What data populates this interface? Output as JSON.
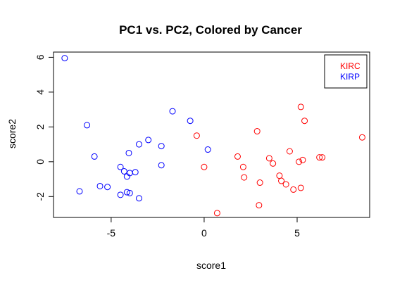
{
  "chart_data": {
    "type": "scatter",
    "title": "PC1 vs. PC2, Colored by Cancer",
    "xlabel": "score1",
    "ylabel": "score2",
    "xlim": [
      -8.1,
      8.9
    ],
    "ylim": [
      -3.2,
      6.3
    ],
    "xticks": [
      -5,
      0,
      5
    ],
    "yticks": [
      -2,
      0,
      2,
      4,
      6
    ],
    "xtick_labels": [
      "-5",
      "0",
      "5"
    ],
    "ytick_labels": [
      "-2",
      "0",
      "2",
      "4",
      "6"
    ],
    "grid": false,
    "legend_position": "top-right",
    "series": [
      {
        "name": "KIRC",
        "color": "#ff0000",
        "marker": "open-circle",
        "points": [
          [
            -0.4,
            1.5
          ],
          [
            0.0,
            -0.3
          ],
          [
            0.7,
            -2.95
          ],
          [
            1.8,
            0.3
          ],
          [
            2.1,
            -0.3
          ],
          [
            2.15,
            -0.9
          ],
          [
            2.85,
            1.75
          ],
          [
            2.95,
            -2.5
          ],
          [
            3.0,
            -1.2
          ],
          [
            3.5,
            0.2
          ],
          [
            3.7,
            -0.1
          ],
          [
            4.05,
            -0.8
          ],
          [
            4.15,
            -1.1
          ],
          [
            4.4,
            -1.3
          ],
          [
            4.6,
            0.6
          ],
          [
            4.8,
            -1.6
          ],
          [
            5.1,
            0.0
          ],
          [
            5.2,
            -1.5
          ],
          [
            5.2,
            3.15
          ],
          [
            5.3,
            0.1
          ],
          [
            5.4,
            2.35
          ],
          [
            6.2,
            0.25
          ],
          [
            6.35,
            0.25
          ],
          [
            8.5,
            1.4
          ]
        ]
      },
      {
        "name": "KIRP",
        "color": "#0000ff",
        "marker": "open-circle",
        "points": [
          [
            -7.5,
            5.95
          ],
          [
            -6.7,
            -1.7
          ],
          [
            -6.3,
            2.1
          ],
          [
            -5.9,
            0.3
          ],
          [
            -5.6,
            -1.4
          ],
          [
            -5.2,
            -1.45
          ],
          [
            -4.5,
            -0.3
          ],
          [
            -4.5,
            -1.9
          ],
          [
            -4.3,
            -0.55
          ],
          [
            -4.15,
            -0.85
          ],
          [
            -4.15,
            -1.75
          ],
          [
            -4.05,
            0.5
          ],
          [
            -4.0,
            -0.65
          ],
          [
            -4.0,
            -1.8
          ],
          [
            -3.7,
            -0.6
          ],
          [
            -3.5,
            1.0
          ],
          [
            -3.5,
            -2.1
          ],
          [
            -3.0,
            1.25
          ],
          [
            -2.3,
            0.9
          ],
          [
            -2.3,
            -0.2
          ],
          [
            -1.7,
            2.9
          ],
          [
            -0.75,
            2.35
          ],
          [
            0.2,
            0.7
          ]
        ]
      }
    ]
  }
}
